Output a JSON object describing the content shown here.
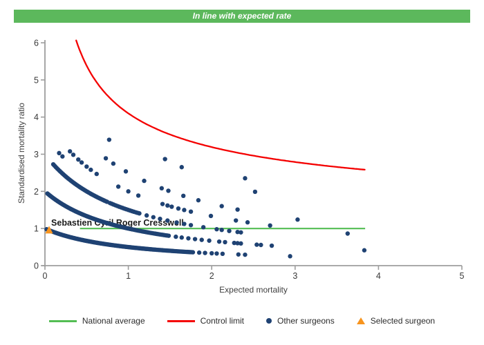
{
  "banner": {
    "text": "In line with expected rate",
    "bg_color": "#5CB85C",
    "text_color": "#FFFFFF"
  },
  "chart_data": {
    "type": "scatter",
    "title": "",
    "xlabel": "Expected mortality",
    "ylabel": "Standardised mortality ratio",
    "xlim": [
      0,
      5
    ],
    "ylim": [
      0,
      6
    ],
    "xticks": [
      0,
      1,
      2,
      3,
      4,
      5
    ],
    "yticks": [
      0,
      1,
      2,
      3,
      4,
      5,
      6
    ],
    "grid": false,
    "legend_position": "bottom",
    "national_average": {
      "y": 1.0,
      "x_from": 0.42,
      "x_to": 3.84,
      "color": "#53BD53"
    },
    "control_limit": {
      "formula": "smr = 1 + 3.1/sqrt(expected)",
      "base": 1,
      "coef": 3.1,
      "x_from": 0.375,
      "x_to": 3.84,
      "color": "#F40000"
    },
    "other_surgeons": {
      "color": "#1F4273",
      "band_formula": "smr = deaths / (expected + 1)",
      "bands": [
        {
          "deaths": 1,
          "dense": [
            {
              "from": 0.02,
              "to": 1.3,
              "step": 0.011
            },
            {
              "from": 1.31,
              "to": 1.78,
              "step": 0.016
            }
          ],
          "dots": [
            1.85,
            1.92,
            2.0,
            2.06,
            2.13,
            2.32,
            2.4,
            2.94
          ]
        },
        {
          "deaths": 2,
          "dense": [
            {
              "from": 0.03,
              "to": 1.05,
              "step": 0.012
            },
            {
              "from": 1.07,
              "to": 1.5,
              "step": 0.018
            }
          ],
          "dots": [
            1.57,
            1.64,
            1.72,
            1.8,
            1.88,
            1.97,
            2.09,
            2.16,
            2.27,
            2.31,
            2.35,
            2.54,
            2.59,
            2.72,
            3.83
          ]
        },
        {
          "deaths": 3,
          "dense": [
            {
              "from": 0.1,
              "to": 0.75,
              "step": 0.015
            },
            {
              "from": 0.78,
              "to": 1.15,
              "step": 0.022
            }
          ],
          "dots": [
            1.22,
            1.3,
            1.38,
            1.47,
            1.58,
            1.67,
            1.75,
            1.9,
            2.06,
            2.12,
            2.21,
            2.31,
            2.35
          ]
        },
        {
          "deaths": 4,
          "dense": [],
          "dots": [
            0.3,
            0.34,
            0.4,
            0.44,
            0.5,
            0.55,
            0.62,
            0.88,
            1.0,
            1.12,
            1.41,
            1.47,
            1.52,
            1.6,
            1.67,
            1.75,
            1.99,
            2.29,
            2.43,
            2.7,
            3.63
          ]
        },
        {
          "deaths": 5,
          "dense": [],
          "dots": [
            0.73,
            0.82,
            0.97,
            1.19,
            1.4,
            1.48,
            1.66,
            1.84,
            2.12,
            2.31,
            3.03
          ]
        },
        {
          "deaths": 6,
          "dense": [],
          "dots": [
            0.77
          ]
        },
        {
          "deaths": 7,
          "dense": [],
          "dots": [
            1.44,
            1.64,
            2.52
          ]
        },
        {
          "deaths": 8,
          "dense": [],
          "dots": [
            2.4
          ]
        }
      ],
      "extra_points": [
        [
          0.17,
          3.03
        ],
        [
          0.21,
          2.94
        ]
      ]
    },
    "selected_surgeon": {
      "name": "Sebastien Cyril Roger Cresswell",
      "x": 0.05,
      "y": 0.95,
      "color": "#F7941E"
    },
    "annotation": {
      "text": "Sebastien Cyril Roger Cresswell",
      "x": 0.075,
      "y": 1.15
    },
    "axis_color": "#9D9D9D",
    "tick_label_color": "#3a3a3a"
  },
  "legend": {
    "items": [
      {
        "label": "National average",
        "swatch": "line",
        "color": "#53BD53"
      },
      {
        "label": "Control limit",
        "swatch": "line",
        "color": "#F40000"
      },
      {
        "label": "Other surgeons",
        "swatch": "dot",
        "color": "#1F4273"
      },
      {
        "label": "Selected surgeon",
        "swatch": "triangle",
        "color": "#F7941E"
      }
    ]
  }
}
